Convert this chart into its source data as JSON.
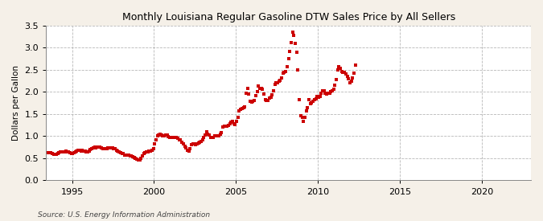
{
  "title": "Monthly Louisiana Regular Gasoline DTW Sales Price by All Sellers",
  "ylabel": "Dollars per Gallon",
  "source": "Source: U.S. Energy Information Administration",
  "background_color": "#f5f0e8",
  "plot_background_color": "#ffffff",
  "marker_color": "#cc0000",
  "marker": "s",
  "markersize": 2.2,
  "xlim_start_year": 1993,
  "xlim_end_year": 2023,
  "ylim": [
    0.0,
    3.5
  ],
  "yticks": [
    0.0,
    0.5,
    1.0,
    1.5,
    2.0,
    2.5,
    3.0,
    3.5
  ],
  "xticks": [
    1995,
    2000,
    2005,
    2010,
    2015,
    2020
  ],
  "data": [
    [
      1993,
      1,
      0.59
    ],
    [
      1993,
      2,
      0.59
    ],
    [
      1993,
      3,
      0.6
    ],
    [
      1993,
      4,
      0.61
    ],
    [
      1993,
      5,
      0.62
    ],
    [
      1993,
      6,
      0.62
    ],
    [
      1993,
      7,
      0.62
    ],
    [
      1993,
      8,
      0.62
    ],
    [
      1993,
      9,
      0.62
    ],
    [
      1993,
      10,
      0.61
    ],
    [
      1993,
      11,
      0.59
    ],
    [
      1993,
      12,
      0.59
    ],
    [
      1994,
      1,
      0.59
    ],
    [
      1994,
      2,
      0.6
    ],
    [
      1994,
      3,
      0.62
    ],
    [
      1994,
      4,
      0.64
    ],
    [
      1994,
      5,
      0.65
    ],
    [
      1994,
      6,
      0.65
    ],
    [
      1994,
      7,
      0.65
    ],
    [
      1994,
      8,
      0.66
    ],
    [
      1994,
      9,
      0.65
    ],
    [
      1994,
      10,
      0.64
    ],
    [
      1994,
      11,
      0.62
    ],
    [
      1994,
      12,
      0.61
    ],
    [
      1995,
      1,
      0.61
    ],
    [
      1995,
      2,
      0.62
    ],
    [
      1995,
      3,
      0.65
    ],
    [
      1995,
      4,
      0.67
    ],
    [
      1995,
      5,
      0.68
    ],
    [
      1995,
      6,
      0.68
    ],
    [
      1995,
      7,
      0.67
    ],
    [
      1995,
      8,
      0.68
    ],
    [
      1995,
      9,
      0.67
    ],
    [
      1995,
      10,
      0.67
    ],
    [
      1995,
      11,
      0.65
    ],
    [
      1995,
      12,
      0.64
    ],
    [
      1996,
      1,
      0.67
    ],
    [
      1996,
      2,
      0.7
    ],
    [
      1996,
      3,
      0.72
    ],
    [
      1996,
      4,
      0.74
    ],
    [
      1996,
      5,
      0.75
    ],
    [
      1996,
      6,
      0.74
    ],
    [
      1996,
      7,
      0.75
    ],
    [
      1996,
      8,
      0.75
    ],
    [
      1996,
      9,
      0.75
    ],
    [
      1996,
      10,
      0.74
    ],
    [
      1996,
      11,
      0.72
    ],
    [
      1996,
      12,
      0.71
    ],
    [
      1997,
      1,
      0.71
    ],
    [
      1997,
      2,
      0.72
    ],
    [
      1997,
      3,
      0.73
    ],
    [
      1997,
      4,
      0.74
    ],
    [
      1997,
      5,
      0.74
    ],
    [
      1997,
      6,
      0.73
    ],
    [
      1997,
      7,
      0.72
    ],
    [
      1997,
      8,
      0.71
    ],
    [
      1997,
      9,
      0.69
    ],
    [
      1997,
      10,
      0.67
    ],
    [
      1997,
      11,
      0.64
    ],
    [
      1997,
      12,
      0.63
    ],
    [
      1998,
      1,
      0.61
    ],
    [
      1998,
      2,
      0.6
    ],
    [
      1998,
      3,
      0.58
    ],
    [
      1998,
      4,
      0.57
    ],
    [
      1998,
      5,
      0.57
    ],
    [
      1998,
      6,
      0.57
    ],
    [
      1998,
      7,
      0.56
    ],
    [
      1998,
      8,
      0.55
    ],
    [
      1998,
      9,
      0.54
    ],
    [
      1998,
      10,
      0.52
    ],
    [
      1998,
      11,
      0.5
    ],
    [
      1998,
      12,
      0.49
    ],
    [
      1999,
      1,
      0.47
    ],
    [
      1999,
      2,
      0.47
    ],
    [
      1999,
      3,
      0.5
    ],
    [
      1999,
      4,
      0.56
    ],
    [
      1999,
      5,
      0.6
    ],
    [
      1999,
      6,
      0.63
    ],
    [
      1999,
      7,
      0.64
    ],
    [
      1999,
      8,
      0.65
    ],
    [
      1999,
      9,
      0.66
    ],
    [
      1999,
      10,
      0.67
    ],
    [
      1999,
      11,
      0.68
    ],
    [
      1999,
      12,
      0.72
    ],
    [
      2000,
      1,
      0.82
    ],
    [
      2000,
      2,
      0.91
    ],
    [
      2000,
      3,
      1.0
    ],
    [
      2000,
      4,
      1.03
    ],
    [
      2000,
      5,
      1.04
    ],
    [
      2000,
      6,
      1.02
    ],
    [
      2000,
      7,
      1.01
    ],
    [
      2000,
      8,
      1.01
    ],
    [
      2000,
      9,
      1.03
    ],
    [
      2000,
      10,
      1.02
    ],
    [
      2000,
      11,
      0.99
    ],
    [
      2000,
      12,
      0.97
    ],
    [
      2001,
      1,
      0.98
    ],
    [
      2001,
      2,
      0.97
    ],
    [
      2001,
      3,
      0.97
    ],
    [
      2001,
      4,
      0.97
    ],
    [
      2001,
      5,
      0.97
    ],
    [
      2001,
      6,
      0.95
    ],
    [
      2001,
      7,
      0.92
    ],
    [
      2001,
      8,
      0.91
    ],
    [
      2001,
      9,
      0.86
    ],
    [
      2001,
      10,
      0.82
    ],
    [
      2001,
      11,
      0.77
    ],
    [
      2001,
      12,
      0.73
    ],
    [
      2002,
      1,
      0.68
    ],
    [
      2002,
      2,
      0.66
    ],
    [
      2002,
      3,
      0.72
    ],
    [
      2002,
      4,
      0.8
    ],
    [
      2002,
      5,
      0.83
    ],
    [
      2002,
      6,
      0.82
    ],
    [
      2002,
      7,
      0.8
    ],
    [
      2002,
      8,
      0.82
    ],
    [
      2002,
      9,
      0.84
    ],
    [
      2002,
      10,
      0.86
    ],
    [
      2002,
      11,
      0.88
    ],
    [
      2002,
      12,
      0.92
    ],
    [
      2003,
      1,
      0.98
    ],
    [
      2003,
      2,
      1.03
    ],
    [
      2003,
      3,
      1.1
    ],
    [
      2003,
      4,
      1.05
    ],
    [
      2003,
      5,
      1.02
    ],
    [
      2003,
      6,
      0.98
    ],
    [
      2003,
      7,
      0.97
    ],
    [
      2003,
      8,
      0.98
    ],
    [
      2003,
      9,
      1.0
    ],
    [
      2003,
      10,
      1.01
    ],
    [
      2003,
      11,
      1.0
    ],
    [
      2003,
      12,
      1.01
    ],
    [
      2004,
      1,
      1.04
    ],
    [
      2004,
      2,
      1.09
    ],
    [
      2004,
      3,
      1.2
    ],
    [
      2004,
      4,
      1.23
    ],
    [
      2004,
      5,
      1.23
    ],
    [
      2004,
      6,
      1.23
    ],
    [
      2004,
      7,
      1.24
    ],
    [
      2004,
      8,
      1.29
    ],
    [
      2004,
      9,
      1.32
    ],
    [
      2004,
      10,
      1.33
    ],
    [
      2004,
      11,
      1.29
    ],
    [
      2004,
      12,
      1.27
    ],
    [
      2005,
      1,
      1.33
    ],
    [
      2005,
      2,
      1.43
    ],
    [
      2005,
      3,
      1.57
    ],
    [
      2005,
      4,
      1.6
    ],
    [
      2005,
      5,
      1.62
    ],
    [
      2005,
      6,
      1.64
    ],
    [
      2005,
      7,
      1.67
    ],
    [
      2005,
      8,
      1.97
    ],
    [
      2005,
      9,
      2.08
    ],
    [
      2005,
      10,
      1.95
    ],
    [
      2005,
      11,
      1.79
    ],
    [
      2005,
      12,
      1.77
    ],
    [
      2006,
      1,
      1.79
    ],
    [
      2006,
      2,
      1.8
    ],
    [
      2006,
      3,
      1.92
    ],
    [
      2006,
      4,
      2.01
    ],
    [
      2006,
      5,
      2.14
    ],
    [
      2006,
      6,
      2.09
    ],
    [
      2006,
      7,
      2.09
    ],
    [
      2006,
      8,
      2.07
    ],
    [
      2006,
      9,
      1.96
    ],
    [
      2006,
      10,
      1.83
    ],
    [
      2006,
      11,
      1.8
    ],
    [
      2006,
      12,
      1.8
    ],
    [
      2007,
      1,
      1.87
    ],
    [
      2007,
      2,
      1.89
    ],
    [
      2007,
      3,
      1.94
    ],
    [
      2007,
      4,
      2.02
    ],
    [
      2007,
      5,
      2.18
    ],
    [
      2007,
      6,
      2.21
    ],
    [
      2007,
      7,
      2.21
    ],
    [
      2007,
      8,
      2.24
    ],
    [
      2007,
      9,
      2.27
    ],
    [
      2007,
      10,
      2.32
    ],
    [
      2007,
      11,
      2.43
    ],
    [
      2007,
      12,
      2.44
    ],
    [
      2008,
      1,
      2.47
    ],
    [
      2008,
      2,
      2.57
    ],
    [
      2008,
      3,
      2.75
    ],
    [
      2008,
      4,
      2.92
    ],
    [
      2008,
      5,
      3.12
    ],
    [
      2008,
      6,
      3.35
    ],
    [
      2008,
      7,
      3.28
    ],
    [
      2008,
      8,
      3.1
    ],
    [
      2008,
      9,
      2.89
    ],
    [
      2008,
      10,
      2.5
    ],
    [
      2008,
      11,
      1.82
    ],
    [
      2008,
      12,
      1.47
    ],
    [
      2009,
      1,
      1.42
    ],
    [
      2009,
      2,
      1.34
    ],
    [
      2009,
      3,
      1.43
    ],
    [
      2009,
      4,
      1.57
    ],
    [
      2009,
      5,
      1.65
    ],
    [
      2009,
      6,
      1.82
    ],
    [
      2009,
      7,
      1.73
    ],
    [
      2009,
      8,
      1.76
    ],
    [
      2009,
      9,
      1.79
    ],
    [
      2009,
      10,
      1.83
    ],
    [
      2009,
      11,
      1.85
    ],
    [
      2009,
      12,
      1.9
    ],
    [
      2010,
      1,
      1.88
    ],
    [
      2010,
      2,
      1.9
    ],
    [
      2010,
      3,
      1.98
    ],
    [
      2010,
      4,
      2.03
    ],
    [
      2010,
      5,
      2.02
    ],
    [
      2010,
      6,
      1.97
    ],
    [
      2010,
      7,
      1.96
    ],
    [
      2010,
      8,
      1.97
    ],
    [
      2010,
      9,
      1.97
    ],
    [
      2010,
      10,
      2.0
    ],
    [
      2010,
      11,
      2.02
    ],
    [
      2010,
      12,
      2.07
    ],
    [
      2011,
      1,
      2.15
    ],
    [
      2011,
      2,
      2.28
    ],
    [
      2011,
      3,
      2.5
    ],
    [
      2011,
      4,
      2.58
    ],
    [
      2011,
      5,
      2.54
    ],
    [
      2011,
      6,
      2.46
    ],
    [
      2011,
      7,
      2.44
    ],
    [
      2011,
      8,
      2.44
    ],
    [
      2011,
      9,
      2.4
    ],
    [
      2011,
      10,
      2.35
    ],
    [
      2011,
      11,
      2.3
    ],
    [
      2011,
      12,
      2.2
    ],
    [
      2012,
      1,
      2.25
    ],
    [
      2012,
      2,
      2.32
    ],
    [
      2012,
      3,
      2.42
    ],
    [
      2012,
      4,
      2.6
    ]
  ]
}
